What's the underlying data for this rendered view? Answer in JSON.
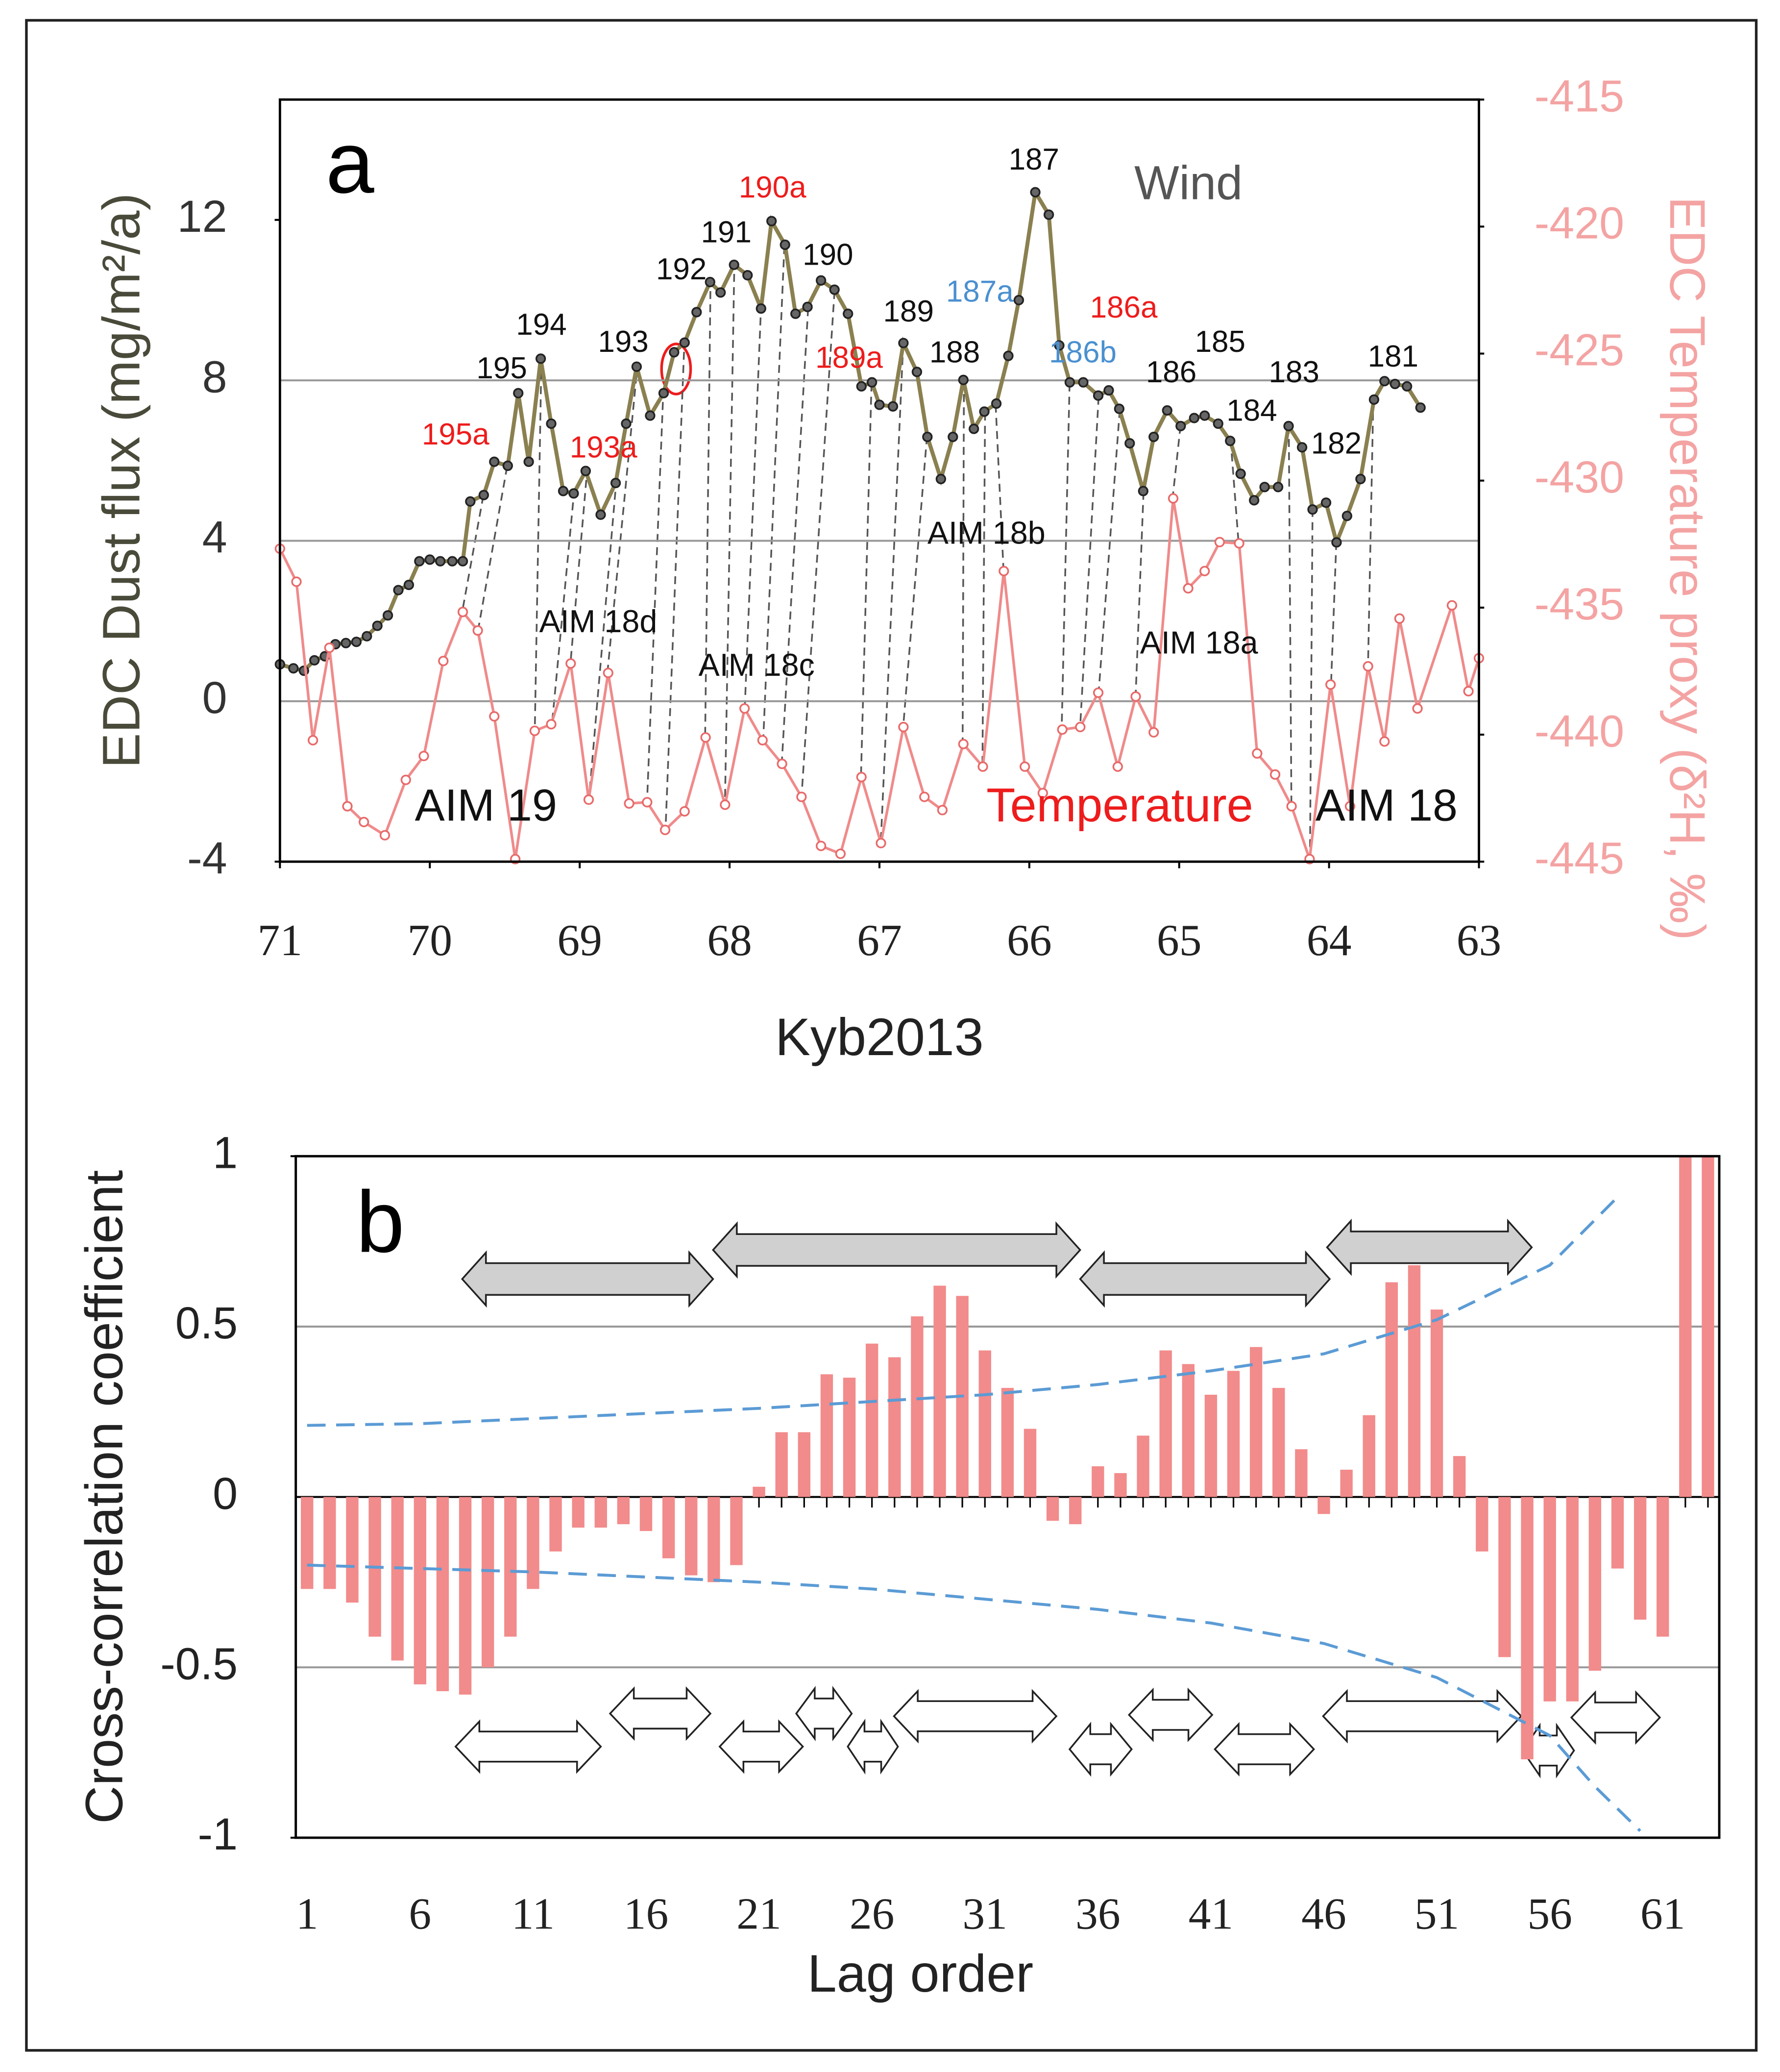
{
  "chart_data": [
    {
      "type": "line",
      "panel_label": "a",
      "xlabel": "Kyb2013",
      "ylabel": "EDC Dust flux (mg/m²/a)",
      "y2label": "EDC Temperature proxy (δ²H, ‰)",
      "xlim": [
        71,
        63
      ],
      "xticks": [
        71,
        70,
        69,
        68,
        67,
        66,
        65,
        64,
        63
      ],
      "ylim": [
        -4,
        15
      ],
      "yticks": [
        -4,
        0,
        4,
        8,
        12
      ],
      "y2lim": [
        -445,
        -415
      ],
      "y2ticks": [
        -445,
        -440,
        -435,
        -430,
        -425,
        -420,
        -415
      ],
      "y2color": "#f4a3a3",
      "grid": true,
      "series": [
        {
          "name": "Wind",
          "color": "#8a8050",
          "marker_color": "#222222",
          "label_color": "#555555",
          "x": [
            71.0,
            70.91,
            70.84,
            70.77,
            70.7,
            70.63,
            70.56,
            70.49,
            70.42,
            70.35,
            70.28,
            70.21,
            70.14,
            70.07,
            70.0,
            69.93,
            69.85,
            69.78,
            69.73,
            69.64,
            69.57,
            69.48,
            69.41,
            69.34,
            69.26,
            69.19,
            69.11,
            69.04,
            68.96,
            68.86,
            68.76,
            68.69,
            68.62,
            68.53,
            68.44,
            68.37,
            68.3,
            68.22,
            68.13,
            68.06,
            67.97,
            67.88,
            67.79,
            67.72,
            67.63,
            67.56,
            67.48,
            67.39,
            67.3,
            67.21,
            67.12,
            67.05,
            67.0,
            66.91,
            66.84,
            66.75,
            66.68,
            66.59,
            66.51,
            66.44,
            66.37,
            66.3,
            66.22,
            66.14,
            66.07,
            65.96,
            65.87,
            65.8,
            65.73,
            65.64,
            65.54,
            65.47,
            65.4,
            65.33,
            65.24,
            65.17,
            65.08,
            64.99,
            64.9,
            64.83,
            64.74,
            64.66,
            64.59,
            64.5,
            64.43,
            64.34,
            64.27,
            64.18,
            64.11,
            64.02,
            63.95,
            63.88,
            63.79,
            63.7,
            63.63,
            63.56,
            63.48,
            63.39
          ],
          "values": [
            0.92,
            0.82,
            0.76,
            1.02,
            1.12,
            1.42,
            1.45,
            1.48,
            1.62,
            1.88,
            2.14,
            2.77,
            2.9,
            3.49,
            3.53,
            3.49,
            3.49,
            3.49,
            4.98,
            5.14,
            5.97,
            5.87,
            7.68,
            5.97,
            8.54,
            6.92,
            5.24,
            5.18,
            5.74,
            4.65,
            5.44,
            6.92,
            8.34,
            7.12,
            7.68,
            8.7,
            8.94,
            9.7,
            10.45,
            10.19,
            10.88,
            10.62,
            9.79,
            11.97,
            11.38,
            9.66,
            9.83,
            10.49,
            10.26,
            9.66,
            7.85,
            7.95,
            7.39,
            7.35,
            8.93,
            8.21,
            6.59,
            5.54,
            6.59,
            8.01,
            6.79,
            7.22,
            7.42,
            8.61,
            10.0,
            12.69,
            12.13,
            8.87,
            7.95,
            7.95,
            7.62,
            7.75,
            7.29,
            6.43,
            5.24,
            6.59,
            7.25,
            6.86,
            7.06,
            7.12,
            6.92,
            6.49,
            5.67,
            5.01,
            5.34,
            5.34,
            6.86,
            6.33,
            4.78,
            4.95,
            3.96,
            4.62,
            5.54,
            7.52,
            7.98,
            7.91,
            7.85,
            7.32
          ]
        },
        {
          "name": "Temperature",
          "color": "#f08a8a",
          "marker_color": "#e86a6a",
          "label_color": "#ee1c1c",
          "axis": "y2",
          "x": [
            71.0,
            70.89,
            70.78,
            70.67,
            70.55,
            70.44,
            70.3,
            70.16,
            70.04,
            69.91,
            69.78,
            69.68,
            69.57,
            69.43,
            69.3,
            69.19,
            69.06,
            68.94,
            68.81,
            68.67,
            68.55,
            68.43,
            68.3,
            68.16,
            68.03,
            67.9,
            67.78,
            67.65,
            67.52,
            67.39,
            67.26,
            67.12,
            66.99,
            66.84,
            66.7,
            66.58,
            66.44,
            66.31,
            66.17,
            66.03,
            65.91,
            65.78,
            65.66,
            65.54,
            65.41,
            65.29,
            65.17,
            65.04,
            64.94,
            64.83,
            64.73,
            64.6,
            64.48,
            64.36,
            64.25,
            64.13,
            63.99,
            63.86,
            63.74,
            63.63,
            63.53,
            63.41,
            63.18,
            63.07,
            63.0
          ],
          "values": [
            -432.68,
            -433.98,
            -440.22,
            -436.58,
            -442.82,
            -443.44,
            -443.96,
            -441.78,
            -440.84,
            -437.1,
            -435.17,
            -435.9,
            -439.28,
            -444.9,
            -439.85,
            -439.59,
            -437.2,
            -442.56,
            -437.57,
            -442.71,
            -442.66,
            -443.75,
            -443.02,
            -440.11,
            -442.76,
            -438.97,
            -440.22,
            -441.15,
            -442.45,
            -444.38,
            -444.69,
            -441.67,
            -444.27,
            -439.7,
            -442.45,
            -442.97,
            -440.37,
            -441.26,
            -433.56,
            -441.26,
            -442.3,
            -439.8,
            -439.7,
            -438.35,
            -441.26,
            -438.5,
            -439.91,
            -430.7,
            -434.24,
            -433.56,
            -432.42,
            -432.47,
            -440.74,
            -441.57,
            -442.82,
            -444.9,
            -438.03,
            -442.82,
            -437.31,
            -440.27,
            -435.43,
            -438.97,
            -434.91,
            -438.29,
            -436.99
          ]
        }
      ],
      "annotations": [
        {
          "text": "195",
          "color": "#111111"
        },
        {
          "text": "194",
          "color": "#111111"
        },
        {
          "text": "193",
          "color": "#111111"
        },
        {
          "text": "192",
          "color": "#111111"
        },
        {
          "text": "191",
          "color": "#111111"
        },
        {
          "text": "190",
          "color": "#111111"
        },
        {
          "text": "189",
          "color": "#111111"
        },
        {
          "text": "188",
          "color": "#111111"
        },
        {
          "text": "187",
          "color": "#111111"
        },
        {
          "text": "186",
          "color": "#111111"
        },
        {
          "text": "185",
          "color": "#111111"
        },
        {
          "text": "184",
          "color": "#111111"
        },
        {
          "text": "183",
          "color": "#111111"
        },
        {
          "text": "182",
          "color": "#111111"
        },
        {
          "text": "181",
          "color": "#111111"
        },
        {
          "text": "195a",
          "color": "#ee1c1c"
        },
        {
          "text": "193a",
          "color": "#ee1c1c"
        },
        {
          "text": "190a",
          "color": "#ee1c1c"
        },
        {
          "text": "189a",
          "color": "#ee1c1c"
        },
        {
          "text": "186a",
          "color": "#ee1c1c"
        },
        {
          "text": "187a",
          "color": "#4a90d0"
        },
        {
          "text": "186b",
          "color": "#4a90d0"
        },
        {
          "text": "AIM 19",
          "color": "#111111"
        },
        {
          "text": "AIM 18d",
          "color": "#111111"
        },
        {
          "text": "AIM 18c",
          "color": "#111111"
        },
        {
          "text": "AIM 18b",
          "color": "#111111"
        },
        {
          "text": "AIM 18a",
          "color": "#111111"
        },
        {
          "text": "AIM 18",
          "color": "#111111"
        }
      ]
    },
    {
      "type": "bar",
      "panel_label": "b",
      "xlabel": "Lag order",
      "ylabel": "Cross-correlation coefficient",
      "color": "#f28b8b",
      "x": [
        1,
        2,
        3,
        4,
        5,
        6,
        7,
        8,
        9,
        10,
        11,
        12,
        13,
        14,
        15,
        16,
        17,
        18,
        19,
        20,
        21,
        22,
        23,
        24,
        25,
        26,
        27,
        28,
        29,
        30,
        31,
        32,
        33,
        34,
        35,
        36,
        37,
        38,
        39,
        40,
        41,
        42,
        43,
        44,
        45,
        46,
        47,
        48,
        49,
        50,
        51,
        52,
        53,
        54,
        55,
        56,
        57,
        58,
        59,
        60,
        61,
        62,
        63
      ],
      "values": [
        -0.27,
        -0.27,
        -0.31,
        -0.41,
        -0.48,
        -0.55,
        -0.57,
        -0.58,
        -0.5,
        -0.41,
        -0.27,
        -0.16,
        -0.09,
        -0.09,
        -0.08,
        -0.1,
        -0.18,
        -0.23,
        -0.25,
        -0.2,
        0.03,
        0.19,
        0.19,
        0.36,
        0.35,
        0.45,
        0.41,
        0.53,
        0.62,
        0.59,
        0.43,
        0.32,
        0.2,
        -0.07,
        -0.08,
        0.09,
        0.07,
        0.18,
        0.43,
        0.39,
        0.3,
        0.37,
        0.44,
        0.32,
        0.14,
        -0.05,
        0.08,
        0.24,
        0.63,
        0.68,
        0.55,
        0.12,
        -0.16,
        -0.47,
        -0.77,
        -0.6,
        -0.6,
        -0.51,
        -0.21,
        -0.36,
        -0.41,
        1,
        1
      ],
      "xlim": [
        0.5,
        63.5
      ],
      "xticks": [
        1,
        6,
        11,
        16,
        21,
        26,
        31,
        36,
        41,
        46,
        51,
        56,
        61
      ],
      "ylim": [
        -1,
        1
      ],
      "yticks": [
        -1,
        -0.5,
        0,
        0.5,
        1
      ],
      "grid": true,
      "confidence_bands": [
        {
          "color": "#5b9bd5",
          "x": [
            1,
            6,
            11,
            16,
            21,
            26,
            31,
            36,
            41,
            46,
            51,
            56,
            59
          ],
          "values": [
            0.21,
            0.215,
            0.23,
            0.245,
            0.26,
            0.28,
            0.3,
            0.33,
            0.37,
            0.42,
            0.52,
            0.68,
            0.88
          ]
        },
        {
          "color": "#5b9bd5",
          "x": [
            1,
            6,
            11,
            16,
            21,
            26,
            31,
            36,
            41,
            46,
            51,
            56,
            58,
            60
          ],
          "values": [
            -0.2,
            -0.21,
            -0.22,
            -0.235,
            -0.25,
            -0.27,
            -0.3,
            -0.33,
            -0.37,
            -0.43,
            -0.53,
            -0.7,
            -0.85,
            -0.98
          ]
        }
      ]
    }
  ]
}
